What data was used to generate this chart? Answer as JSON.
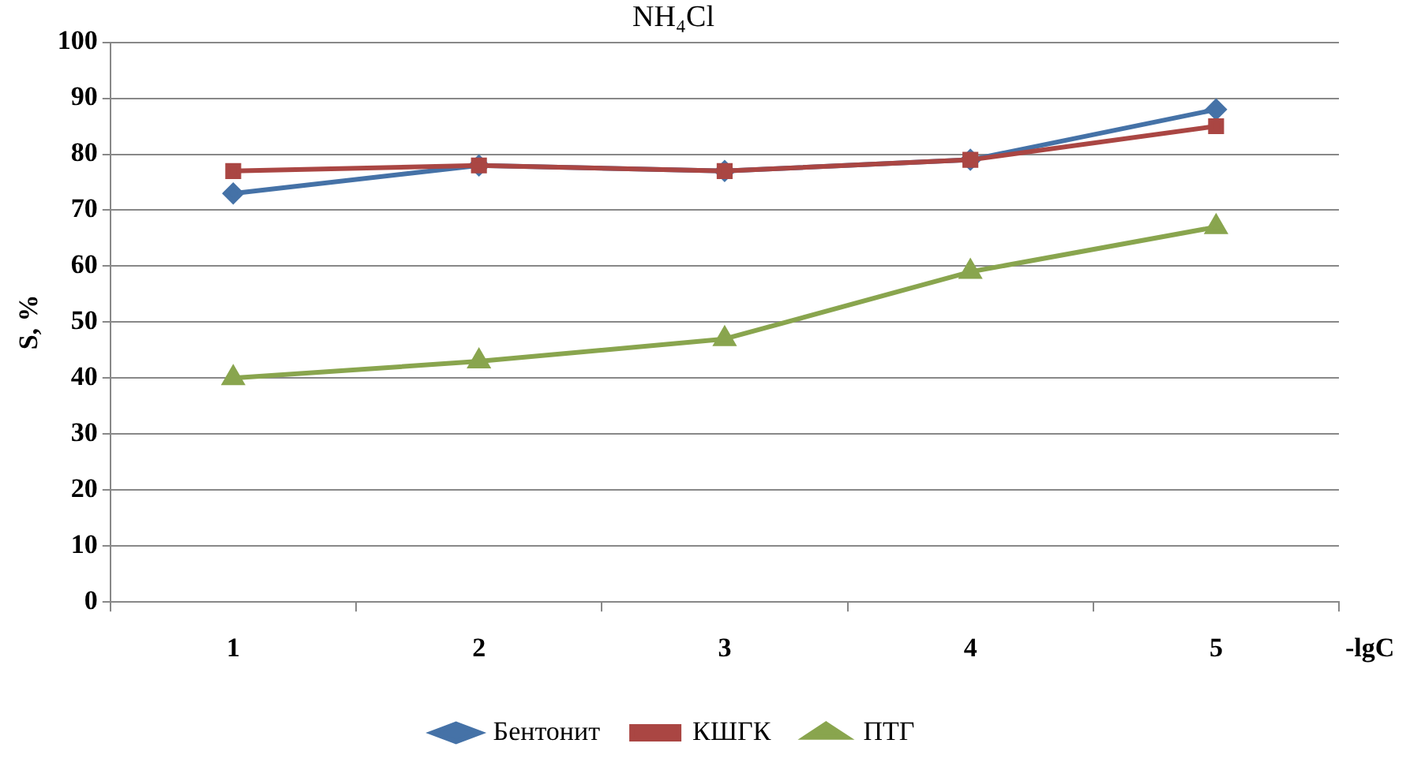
{
  "chart_data": {
    "type": "line",
    "title": "NH₄Cl",
    "xlabel": "-lgC",
    "ylabel": "S, %",
    "categories": [
      "1",
      "2",
      "3",
      "4",
      "5"
    ],
    "series": [
      {
        "name": "Бентонит",
        "color": "#4572a7",
        "marker": "diamond",
        "values": [
          73,
          78,
          77,
          79,
          88
        ]
      },
      {
        "name": "КШГК",
        "color": "#aa4643",
        "marker": "square",
        "values": [
          77,
          78,
          77,
          79,
          85
        ]
      },
      {
        "name": "ПТГ",
        "color": "#89a54e",
        "marker": "triangle",
        "values": [
          40,
          43,
          47,
          59,
          67
        ]
      }
    ],
    "ylim": [
      0,
      100
    ],
    "yticks": [
      0,
      10,
      20,
      30,
      40,
      50,
      60,
      70,
      80,
      90,
      100
    ],
    "grid": "y",
    "legend": "bottom"
  }
}
